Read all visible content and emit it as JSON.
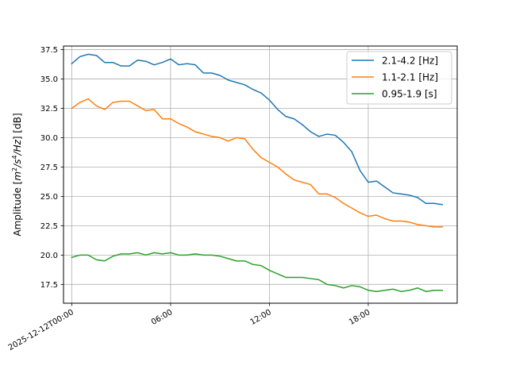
{
  "chart_data": {
    "type": "line",
    "xlabel": "",
    "ylabel": "Amplitude [m²/s⁴/Hz] [dB]",
    "ylabel_parts": {
      "prefix": "Amplitude [",
      "m": "m",
      "sup1": "2",
      "s": "/s",
      "sup2": "4",
      "hz": "/Hz",
      "suffix": "] [dB]"
    },
    "xlim": [
      -0.5,
      23.4
    ],
    "ylim": [
      15.9,
      37.8
    ],
    "x_ticks": [
      {
        "value": 0,
        "label": "2025-12-12T00:00"
      },
      {
        "value": 6,
        "label": "06:00"
      },
      {
        "value": 12,
        "label": "12:00"
      },
      {
        "value": 18,
        "label": "18:00"
      }
    ],
    "y_ticks": [
      {
        "value": 17.5,
        "label": "17.5"
      },
      {
        "value": 20.0,
        "label": "20.0"
      },
      {
        "value": 22.5,
        "label": "22.5"
      },
      {
        "value": 25.0,
        "label": "25.0"
      },
      {
        "value": 27.5,
        "label": "27.5"
      },
      {
        "value": 30.0,
        "label": "30.0"
      },
      {
        "value": 32.5,
        "label": "32.5"
      },
      {
        "value": 35.0,
        "label": "35.0"
      },
      {
        "value": 37.5,
        "label": "37.5"
      }
    ],
    "grid": true,
    "legend_position": "top-right",
    "x": [
      0,
      0.5,
      1,
      1.5,
      2,
      2.5,
      3,
      3.5,
      4,
      4.5,
      5,
      5.5,
      6,
      6.5,
      7,
      7.5,
      8,
      8.5,
      9,
      9.5,
      10,
      10.5,
      11,
      11.5,
      12,
      12.5,
      13,
      13.5,
      14,
      14.5,
      15,
      15.5,
      16,
      16.5,
      17,
      17.5,
      18,
      18.5,
      19,
      19.5,
      20,
      20.5,
      21,
      21.5,
      22,
      22.5
    ],
    "series": [
      {
        "name": "2.1-4.2 [Hz]",
        "color": "#1f77b4",
        "values": [
          36.3,
          36.9,
          37.1,
          37.0,
          36.4,
          36.4,
          36.1,
          36.1,
          36.6,
          36.5,
          36.2,
          36.4,
          36.7,
          36.2,
          36.3,
          36.2,
          35.5,
          35.5,
          35.3,
          34.9,
          34.7,
          34.5,
          34.1,
          33.8,
          33.2,
          32.4,
          31.8,
          31.6,
          31.1,
          30.5,
          30.1,
          30.3,
          30.2,
          29.6,
          28.8,
          27.2,
          26.2,
          26.3,
          25.8,
          25.3,
          25.2,
          25.1,
          24.9,
          24.4,
          24.4,
          24.3
        ]
      },
      {
        "name": "1.1-2.1 [Hz]",
        "color": "#ff7f0e",
        "values": [
          32.5,
          33.0,
          33.3,
          32.7,
          32.4,
          33.0,
          33.1,
          33.1,
          32.7,
          32.3,
          32.4,
          31.6,
          31.6,
          31.2,
          30.9,
          30.5,
          30.3,
          30.1,
          30.0,
          29.7,
          30.0,
          29.9,
          29.0,
          28.3,
          27.9,
          27.5,
          26.9,
          26.4,
          26.2,
          26.0,
          25.2,
          25.2,
          24.9,
          24.4,
          24.0,
          23.6,
          23.3,
          23.4,
          23.1,
          22.9,
          22.9,
          22.8,
          22.6,
          22.5,
          22.4,
          22.4
        ]
      },
      {
        "name": "0.95-1.9 [s]",
        "color": "#2ca02c",
        "values": [
          19.8,
          20.0,
          20.0,
          19.6,
          19.5,
          19.9,
          20.1,
          20.1,
          20.2,
          20.0,
          20.2,
          20.1,
          20.2,
          20.0,
          20.0,
          20.1,
          20.0,
          20.0,
          19.9,
          19.7,
          19.5,
          19.5,
          19.2,
          19.1,
          18.7,
          18.4,
          18.1,
          18.1,
          18.1,
          18.0,
          17.9,
          17.5,
          17.4,
          17.2,
          17.4,
          17.3,
          17.0,
          16.9,
          17.0,
          17.1,
          16.9,
          17.0,
          17.2,
          16.9,
          17.0,
          17.0
        ]
      }
    ]
  }
}
